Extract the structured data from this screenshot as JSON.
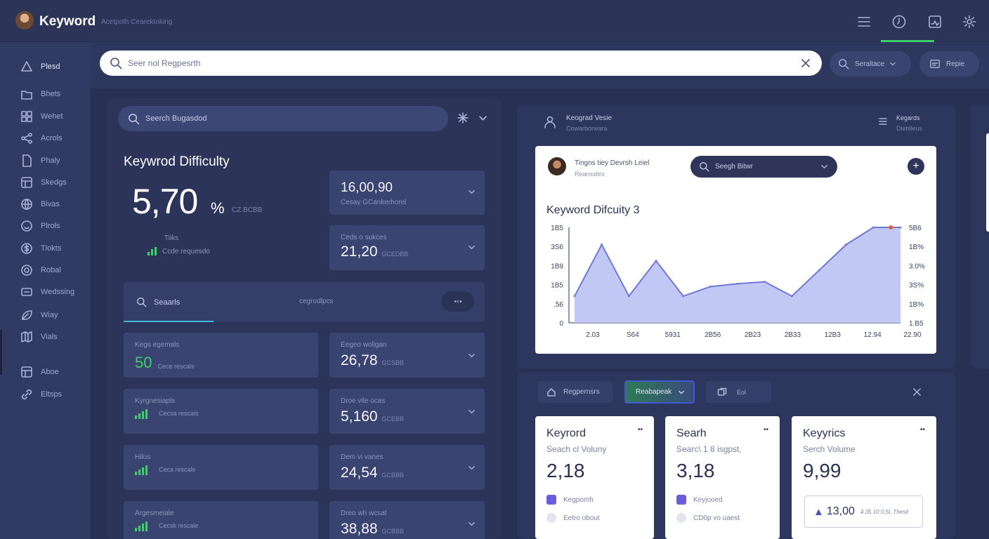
{
  "app": {
    "title": "Keyword",
    "subtitle": "Acetpoth Cearektoking"
  },
  "top_icons": [
    "list-icon",
    "clock-icon",
    "chart-icon",
    "settings-icon"
  ],
  "search": {
    "placeholder": "Seer nol Regpesrth"
  },
  "header_buttons": [
    {
      "label": "Seraltace",
      "icon": "search-icon"
    },
    {
      "label": "Repie",
      "icon": "report-icon"
    }
  ],
  "sidebar": {
    "items": [
      {
        "label": "Plesd",
        "icon": "triangle-icon",
        "active": true
      },
      {
        "label": "Bhets",
        "icon": "folder-icon"
      },
      {
        "label": "Wehet",
        "icon": "grid-icon"
      },
      {
        "label": "Acrols",
        "icon": "share-icon"
      },
      {
        "label": "Phaly",
        "icon": "file-icon"
      },
      {
        "label": "Skedgs",
        "icon": "table-icon"
      },
      {
        "label": "Bivas",
        "icon": "globe-icon"
      },
      {
        "label": "Plrols",
        "icon": "face-icon"
      },
      {
        "label": "Tlokts",
        "icon": "dollar-icon"
      },
      {
        "label": "Robal",
        "icon": "target-icon"
      },
      {
        "label": "Wedssing",
        "icon": "layers-icon"
      },
      {
        "label": "Wiay",
        "icon": "leaf-icon"
      },
      {
        "label": "Vials",
        "icon": "map-icon"
      },
      {
        "label": "Aboe",
        "icon": "table-icon"
      },
      {
        "label": "Eltsps",
        "icon": "link-icon"
      }
    ]
  },
  "left": {
    "search_placeholder": "Seerch Bugasdod",
    "title": "Keywrod Difficulty",
    "big_value": "5,70",
    "big_unit": "%",
    "big_note": "CZ.BCBB",
    "trend_label": "Tiiks",
    "trend_note": "Ccde requesdo",
    "card1": {
      "value": "16,00,90",
      "sub": "Cesay GCankerhorel"
    },
    "card2": {
      "label": "Ceds o sukces",
      "value": "21,20",
      "sub": "GCEDBB"
    },
    "tabs": {
      "search": "Seaarls",
      "other": "cegrodlpcs"
    },
    "rows": [
      {
        "left_label": "Kegs egemals",
        "left_value": "50",
        "left_sub": "Cece rescals",
        "right_label": "Eegeo woligan",
        "right_value": "26,78",
        "right_sub": "GCSBB"
      },
      {
        "left_label": "Kyrgnesiapls",
        "left_value": "",
        "left_sub": "Cecsa rescals",
        "right_label": "Droe vile ocas",
        "right_value": "5,160",
        "right_sub": "GCEBB"
      },
      {
        "left_label": "Hilus",
        "left_value": "",
        "left_sub": "Ceca rescale",
        "right_label": "Dem vi vanes",
        "right_value": "24,54",
        "right_sub": "GCBBB"
      },
      {
        "left_label": "Argesmeiale",
        "left_value": "",
        "left_sub": "Cecsk rescale",
        "right_label": "Dreo wh wcsat",
        "right_value": "38,88",
        "right_sub": "GCBBB"
      }
    ]
  },
  "right_panel": {
    "header_title": "Keograd Vesie",
    "header_sub": "Cowarborwara",
    "header_right_1": "Kegards",
    "header_right_2": "Dieblleus",
    "user_line1": "Tingns tiey Devrsh Leiel",
    "user_line2": "Reansstirs",
    "search_placeholder": "Seegh Bitwr"
  },
  "chart_data": {
    "type": "area",
    "title": "Keyword Difcuity 3",
    "left_ticks": [
      "1B5",
      "3S6",
      "1B9",
      "1B5",
      ".56",
      "0"
    ],
    "right_ticks": [
      "5B6",
      "1B%",
      "3.0%",
      "3S%",
      "1B%",
      "1.B5"
    ],
    "x_ticks": [
      "2.03",
      "S64",
      "5931",
      "2B56",
      "2B23",
      "2B33",
      "12B3",
      "12.94",
      "22.90"
    ],
    "x": [
      0,
      1,
      2,
      3,
      4,
      5,
      6,
      7,
      8,
      9,
      10,
      11,
      12
    ],
    "values": [
      0.28,
      0.82,
      0.28,
      0.65,
      0.28,
      0.38,
      0.41,
      0.43,
      0.28,
      0.55,
      0.82,
      1.0,
      1.0
    ],
    "ylim": [
      0,
      1
    ],
    "fill_color": "#b9c2f2",
    "line_color": "#7078d6",
    "marker_color": "#e45a3a"
  },
  "bottom": {
    "toolbar": {
      "btn1": "Regpernsrs",
      "btn2": "Reabapeak",
      "btn3": "Eol"
    },
    "cards": [
      {
        "title": "Keyrord",
        "sub": "Seach cl Voluny",
        "value": "2,18",
        "row1": "Kegpomh",
        "row2": "Eetro obout"
      },
      {
        "title": "Searh",
        "sub": "Searc\\ 1 8 isgpst,",
        "value": "3,18",
        "row1": "Keyjooed",
        "row2": "CD0p vo uaest"
      },
      {
        "title": "Keyyrics",
        "sub": "Serch Volume",
        "value": "9,99",
        "box_value": "13,00",
        "box_note": "4.35 10 0.5L Thesit"
      }
    ]
  },
  "colors": {
    "accent": "#5a6bdc",
    "green": "#3ecf6a",
    "navy": "#283053"
  }
}
